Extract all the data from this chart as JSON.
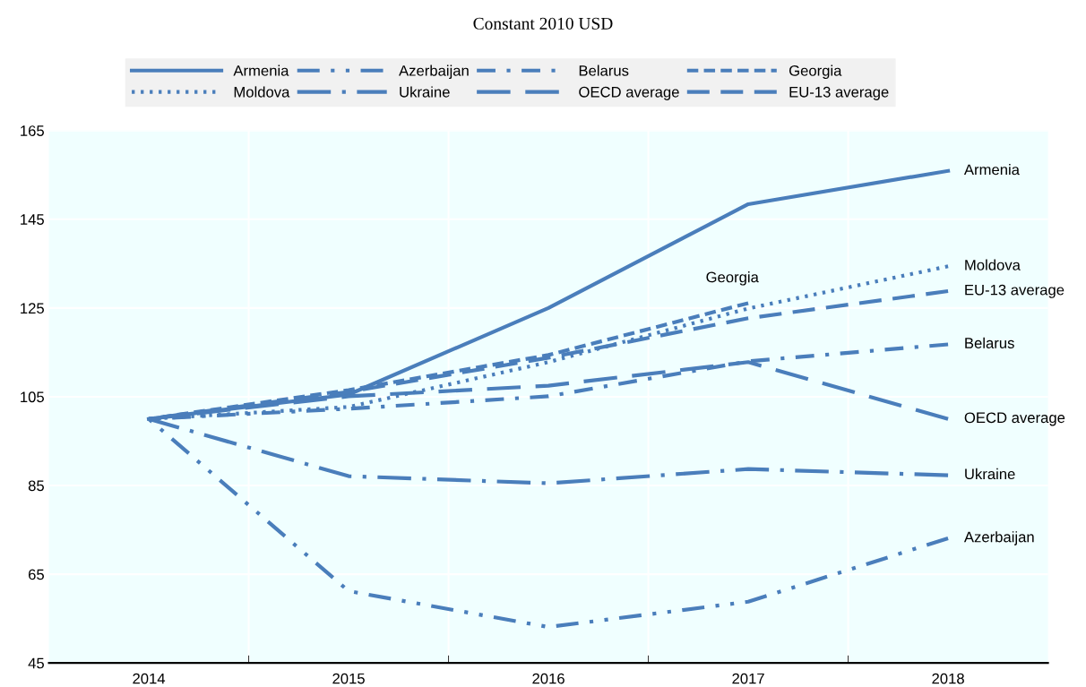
{
  "chart_data": {
    "type": "line",
    "title": "Constant 2010 USD",
    "categories": [
      "2014",
      "2015",
      "2016",
      "2017",
      "2018"
    ],
    "ylim": [
      45,
      165
    ],
    "yticks": [
      45,
      65,
      85,
      105,
      125,
      145,
      165
    ],
    "grid": true,
    "legend": "top",
    "marker": "none",
    "series": [
      {
        "name": "Armenia",
        "color": "#4a7ebb",
        "line_style": "solid",
        "values": [
          100,
          105.5,
          125,
          148.4,
          155.9
        ]
      },
      {
        "name": "Azerbaijan",
        "color": "#4a7ebb",
        "line_style": "dashdotdot",
        "values": [
          100,
          61.2,
          53.1,
          58.8,
          73.1
        ]
      },
      {
        "name": "Belarus",
        "color": "#4a7ebb",
        "line_style": "dashdot",
        "values": [
          100,
          102.3,
          105.1,
          113,
          116.8
        ]
      },
      {
        "name": "Georgia",
        "color": "#4a7ebb",
        "line_style": "dashed",
        "values": [
          100,
          106.5,
          114.4,
          126.1,
          null
        ]
      },
      {
        "name": "Moldova",
        "color": "#4a7ebb",
        "line_style": "dotted",
        "values": [
          100,
          102.7,
          112.8,
          124.9,
          134.4
        ]
      },
      {
        "name": "Ukraine",
        "color": "#4a7ebb",
        "line_style": "longdashdot",
        "values": [
          100,
          87.1,
          85.5,
          88.7,
          87.3
        ]
      },
      {
        "name": "OECD average",
        "color": "#4a7ebb",
        "line_style": "longdash",
        "values": [
          100,
          105.1,
          107.5,
          112.8,
          100
        ]
      },
      {
        "name": "EU-13 average",
        "color": "#4a7ebb",
        "line_style": "mediumdash",
        "values": [
          100,
          106.1,
          113.8,
          122.7,
          128.8
        ]
      }
    ]
  }
}
